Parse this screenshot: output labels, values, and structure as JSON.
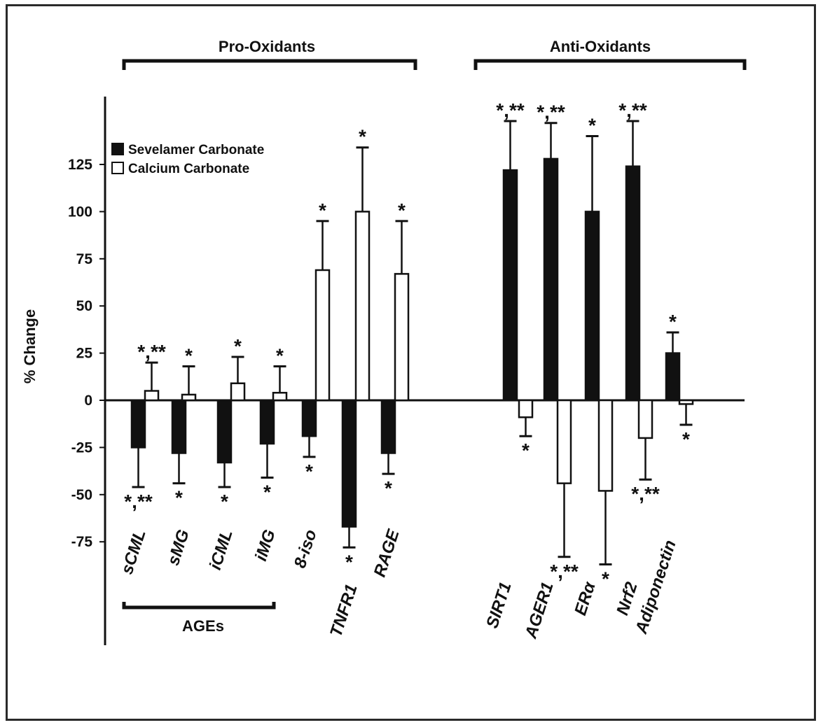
{
  "chart_data": {
    "type": "bar",
    "ylabel": "% Change",
    "yticks": [
      125,
      100,
      75,
      50,
      25,
      0,
      -25,
      -50,
      -75
    ],
    "categories": [
      "sCML",
      "sMG",
      "iCML",
      "iMG",
      "8-iso",
      "TNFR1",
      "RAGE",
      "SIRT1",
      "AGER1",
      "ERα",
      "Nrf2",
      "Adiponectin"
    ],
    "series": [
      {
        "name": "Sevelamer Carbonate",
        "color": "#111111",
        "values": [
          -25,
          -28,
          -33,
          -23,
          -19,
          -67,
          -28,
          122,
          128,
          100,
          124,
          25
        ],
        "error": [
          21,
          16,
          13,
          18,
          11,
          11,
          11,
          26,
          19,
          40,
          24,
          11
        ],
        "sig": [
          "*,**",
          "*",
          "*",
          "*",
          "*",
          "*",
          "*",
          "*,**",
          "*,**",
          "*",
          "*,**",
          "*"
        ]
      },
      {
        "name": "Calcium Carbonate",
        "color": "#ffffff",
        "values": [
          5,
          3,
          9,
          4,
          69,
          100,
          67,
          -9,
          -44,
          -48,
          -20,
          -2
        ],
        "error": [
          15,
          15,
          14,
          14,
          26,
          34,
          28,
          10,
          39,
          39,
          22,
          11
        ],
        "sig": [
          "*,**",
          "*",
          "*",
          "*",
          "*",
          "*",
          "*",
          "*",
          "*,**",
          "*",
          "*,**",
          "*"
        ]
      }
    ],
    "groups": [
      {
        "label": "Pro-Oxidants"
      },
      {
        "label": "Anti-Oxidants"
      },
      {
        "label": "AGEs"
      }
    ],
    "legend_position": "top-left",
    "grid": false
  }
}
